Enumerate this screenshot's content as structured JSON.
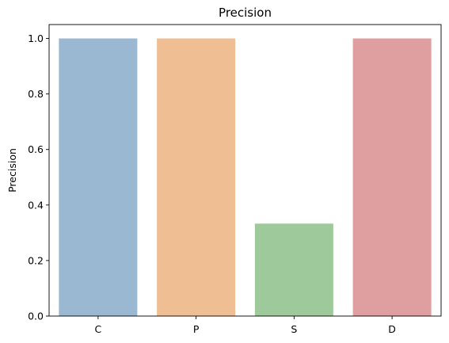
{
  "chart_data": {
    "type": "bar",
    "title": "Precision",
    "xlabel": "",
    "ylabel": "Precision",
    "categories": [
      "C",
      "P",
      "S",
      "D"
    ],
    "values": [
      1.0,
      1.0,
      0.333,
      1.0
    ],
    "ylim": [
      0,
      1.05
    ],
    "yticks": [
      "0.0",
      "0.2",
      "0.4",
      "0.6",
      "0.8",
      "1.0"
    ],
    "colors": [
      "#9ab8d1",
      "#efbe93",
      "#9ec99a",
      "#df9e9f"
    ],
    "grid": false,
    "legend": "none"
  }
}
